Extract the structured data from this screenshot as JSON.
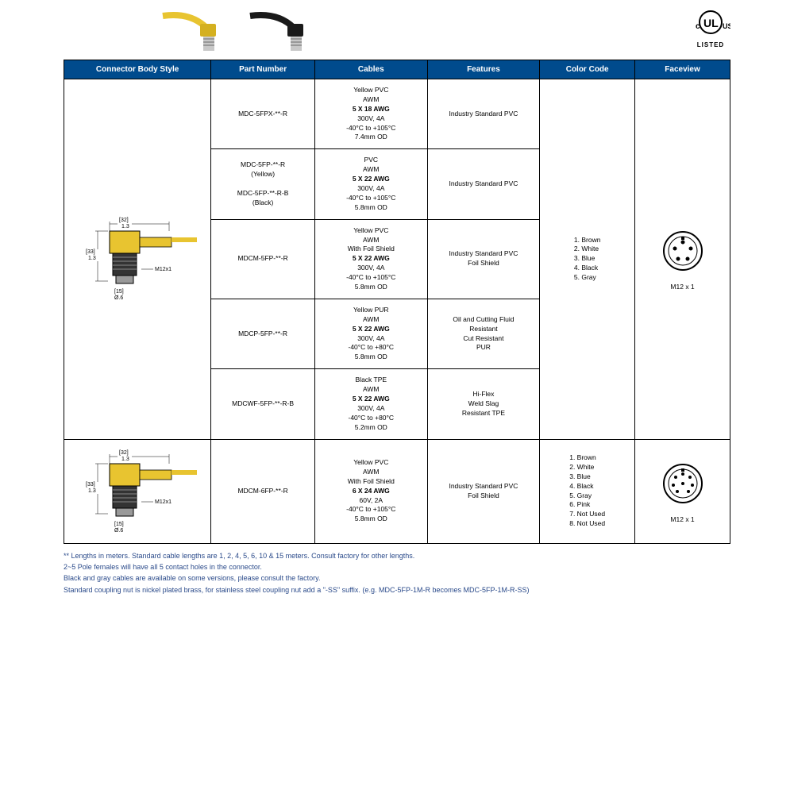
{
  "header": {
    "ul_top": "c",
    "ul_right": "US",
    "ul_bottom": "LISTED"
  },
  "table": {
    "headers": [
      "Connector Body Style",
      "Part Number",
      "Cables",
      "Features",
      "Color Code",
      "Faceview"
    ],
    "col_widths": [
      "170px",
      "120px",
      "130px",
      "130px",
      "110px",
      "110px"
    ],
    "header_bg": "#004b8d",
    "header_fg": "#ffffff",
    "rows": [
      {
        "part": "MDC-5FPX-**-R",
        "cable": [
          "Yellow PVC",
          "AWM",
          "5 X 18 AWG",
          "300V, 4A",
          "-40°C to +105°C",
          "7.4mm OD"
        ],
        "cable_bold_idx": 2,
        "features": [
          "Industry Standard PVC"
        ]
      },
      {
        "part_lines": [
          "MDC-5FP-**-R",
          "(Yellow)",
          "",
          "MDC-5FP-**-R-B",
          "(Black)"
        ],
        "cable": [
          "PVC",
          "AWM",
          "5 X 22 AWG",
          "300V, 4A",
          "-40°C to +105°C",
          "5.8mm OD"
        ],
        "cable_bold_idx": 2,
        "features": [
          "Industry Standard PVC"
        ]
      },
      {
        "part": "MDCM-5FP-**-R",
        "cable": [
          "Yellow PVC",
          "AWM",
          "With Foil Shield",
          "5 X 22 AWG",
          "300V, 4A",
          "-40°C to +105°C",
          "5.8mm OD"
        ],
        "cable_bold_idx": 3,
        "features": [
          "Industry Standard PVC",
          "Foil Shield"
        ]
      },
      {
        "part": "MDCP-5FP-**-R",
        "cable": [
          "Yellow PUR",
          "AWM",
          "5 X 22 AWG",
          "300V, 4A",
          "-40°C to +80°C",
          "5.8mm OD"
        ],
        "cable_bold_idx": 2,
        "features": [
          "Oil and Cutting Fluid",
          "Resistant",
          "Cut Resistant",
          "PUR"
        ]
      },
      {
        "part": "MDCWF-5FP-**-R-B",
        "cable": [
          "Black TPE",
          "AWM",
          "5 X 22 AWG",
          "300V, 4A",
          "-40°C to +80°C",
          "5.2mm OD"
        ],
        "cable_bold_idx": 2,
        "features": [
          "Hi-Flex",
          "Weld Slag",
          "Resistant TPE"
        ]
      },
      {
        "part": "MDCM-6FP-**-R",
        "cable": [
          "Yellow PVC",
          "AWM",
          "With Foil Shield",
          "6 X 24 AWG",
          "60V, 2A",
          "-40°C to +105°C",
          "5.8mm OD"
        ],
        "cable_bold_idx": 3,
        "features": [
          "Industry Standard PVC",
          "Foil Shield"
        ]
      }
    ],
    "color_code_5": [
      "1. Brown",
      "2. White",
      "3. Blue",
      "4. Black",
      "5. Gray"
    ],
    "color_code_8": [
      "1. Brown",
      "2. White",
      "3. Blue",
      "4. Black",
      "5. Gray",
      "6. Pink",
      "7. Not Used",
      "8. Not Used"
    ],
    "faceview_label": "M12 x 1",
    "connector_dims": {
      "w": "[32]",
      "w2": "1.3",
      "h": "[33]",
      "h2": "1.3",
      "d": "[15]",
      "d2": "Ø.6",
      "thread": "M12x1"
    }
  },
  "footnotes": [
    "** Lengths in meters.  Standard cable lengths are 1, 2, 4, 5, 6, 10 & 15 meters. Consult factory for other lengths.",
    "2~5 Pole females will have all 5 contact holes in the connector.",
    "Black and gray cables are available on some versions, please consult the factory.",
    "Standard coupling nut is nickel plated brass, for stainless steel coupling nut add a \"-SS\" suffix. (e.g. MDC-5FP-1M-R becomes MDC-5FP-1M-R-SS)"
  ],
  "colors": {
    "yellow_cable": "#e8c430",
    "black_cable": "#1a1a1a",
    "metal": "#b8b8b8",
    "footnote": "#2a4a8a"
  }
}
